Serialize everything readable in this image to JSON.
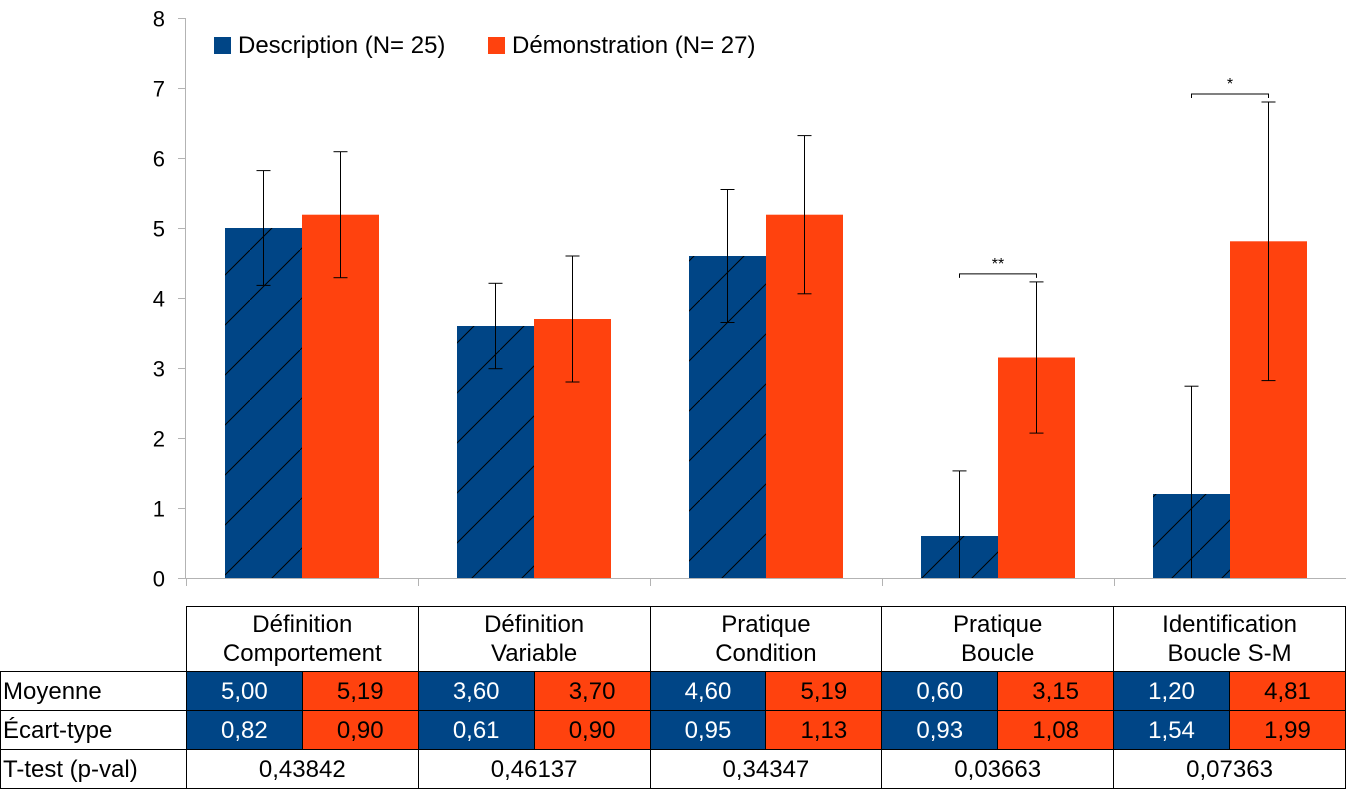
{
  "chart_data": {
    "type": "bar",
    "categories": [
      "Définition\nComportement",
      "Définition\nVariable",
      "Pratique\nCondition",
      "Pratique\nBoucle",
      "Identification\nBoucle S-M"
    ],
    "series": [
      {
        "name": "Description (N= 25)",
        "color": "#004586",
        "pattern": "diagonal-hatch",
        "values": [
          5.0,
          3.6,
          4.6,
          0.6,
          1.2
        ],
        "std": [
          0.82,
          0.61,
          0.95,
          0.93,
          1.54
        ]
      },
      {
        "name": "Démonstration (N= 27)",
        "color": "#ff420e",
        "values": [
          5.19,
          3.7,
          5.19,
          3.15,
          4.81
        ],
        "std": [
          0.9,
          0.9,
          1.13,
          1.08,
          1.99
        ]
      }
    ],
    "ylim": [
      0,
      8
    ],
    "yticks": [
      "0",
      "1",
      "2",
      "3",
      "4",
      "5",
      "6",
      "7",
      "8"
    ],
    "grid": false,
    "legend_position": "top-left",
    "error_bars": true,
    "annotations": [
      {
        "category_index": 3,
        "text": "**"
      },
      {
        "category_index": 4,
        "text": "*"
      }
    ]
  },
  "table": {
    "row_labels": {
      "mean": "Moyenne",
      "std": "Écart-type",
      "ttest": "T-test (p-val)"
    },
    "mean": [
      [
        "5,00",
        "5,19"
      ],
      [
        "3,60",
        "3,70"
      ],
      [
        "4,60",
        "5,19"
      ],
      [
        "0,60",
        "3,15"
      ],
      [
        "1,20",
        "4,81"
      ]
    ],
    "std": [
      [
        "0,82",
        "0,90"
      ],
      [
        "0,61",
        "0,90"
      ],
      [
        "0,95",
        "1,13"
      ],
      [
        "0,93",
        "1,08"
      ],
      [
        "1,54",
        "1,99"
      ]
    ],
    "pvals": [
      "0,43842",
      "0,46137",
      "0,34347",
      "0,03663",
      "0,07363"
    ]
  }
}
